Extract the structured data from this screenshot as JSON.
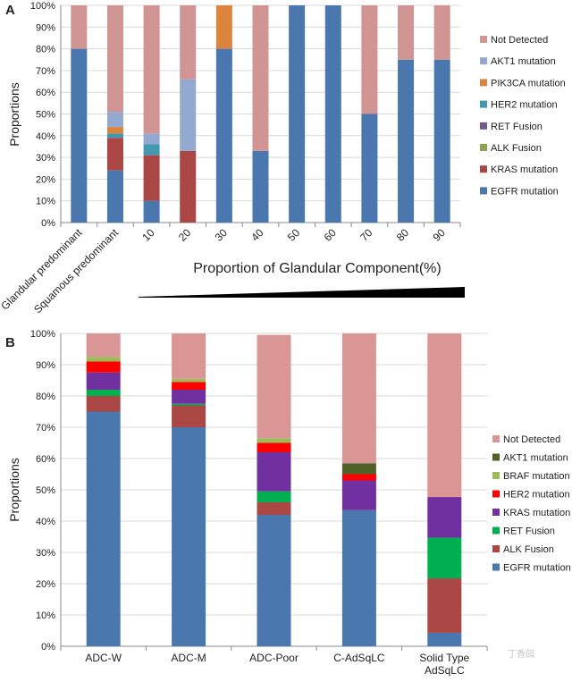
{
  "chart_data": [
    {
      "panel": "A",
      "type": "bar",
      "stacked": true,
      "ylabel": "Proportions",
      "xlabel": "Proportion of Glandular Component(%)",
      "ylim": [
        0,
        100
      ],
      "yticks": [
        "0%",
        "10%",
        "20%",
        "30%",
        "40%",
        "50%",
        "60%",
        "70%",
        "80%",
        "90%",
        "100%"
      ],
      "grid": true,
      "legend_position": "right",
      "categories": [
        "Glandular predominant",
        "Squamous predominant",
        "10",
        "20",
        "30",
        "40",
        "50",
        "60",
        "70",
        "80",
        "90"
      ],
      "series": [
        {
          "name": "EGFR mutation",
          "color": "#4a77ae",
          "values": [
            80,
            24,
            10,
            0,
            80,
            33,
            100,
            100,
            50,
            75,
            75
          ]
        },
        {
          "name": "KRAS mutation",
          "color": "#aa4643",
          "values": [
            0,
            15,
            21,
            33,
            0,
            0,
            0,
            0,
            0,
            0,
            0
          ]
        },
        {
          "name": "ALK Fusion",
          "color": "#89a54e",
          "values": [
            0,
            0,
            0,
            0,
            0,
            0,
            0,
            0,
            0,
            0,
            0
          ]
        },
        {
          "name": "RET Fusion",
          "color": "#71588f",
          "values": [
            0,
            0,
            0,
            0,
            0,
            0,
            0,
            0,
            0,
            0,
            0
          ]
        },
        {
          "name": "HER2 mutation",
          "color": "#4198af",
          "values": [
            0,
            2,
            5,
            0,
            0,
            0,
            0,
            0,
            0,
            0,
            0
          ]
        },
        {
          "name": "PIK3CA mutation",
          "color": "#db843d",
          "values": [
            0,
            3,
            0,
            0,
            20,
            0,
            0,
            0,
            0,
            0,
            0
          ]
        },
        {
          "name": "AKT1 mutation",
          "color": "#93a9cf",
          "values": [
            0,
            7,
            5,
            33,
            0,
            0,
            0,
            0,
            0,
            0,
            0
          ]
        },
        {
          "name": "Not Detected",
          "color": "#d09493",
          "values": [
            20,
            49,
            59,
            34,
            0,
            67,
            0,
            0,
            50,
            25,
            25
          ]
        }
      ],
      "legend_order": [
        "Not Detected",
        "AKT1 mutation",
        "PIK3CA mutation",
        "HER2 mutation",
        "RET Fusion",
        "ALK Fusion",
        "KRAS mutation",
        "EGFR mutation"
      ]
    },
    {
      "panel": "B",
      "type": "bar",
      "stacked": true,
      "ylabel": "Proportions",
      "ylim": [
        0,
        100
      ],
      "yticks": [
        "0%",
        "10%",
        "20%",
        "30%",
        "40%",
        "50%",
        "60%",
        "70%",
        "80%",
        "90%",
        "100%"
      ],
      "grid": true,
      "legend_position": "right",
      "categories": [
        "ADC-W",
        "ADC-M",
        "ADC-Poor",
        "C-AdSqLC",
        "Solid Type AdSqLC"
      ],
      "series": [
        {
          "name": "EGFR mutation",
          "color": "#4a77ae",
          "values": [
            75,
            70,
            42,
            43.5,
            4.3
          ]
        },
        {
          "name": "ALK Fusion",
          "color": "#aa4643",
          "values": [
            5,
            7,
            4,
            0,
            17.4
          ]
        },
        {
          "name": "RET Fusion",
          "color": "#00b050",
          "values": [
            2,
            0.5,
            3.5,
            0,
            13
          ]
        },
        {
          "name": "KRAS mutation",
          "color": "#7030a0",
          "values": [
            5.5,
            4.5,
            12.5,
            9.5,
            13
          ]
        },
        {
          "name": "HER2 mutation",
          "color": "#ff0000",
          "values": [
            3.5,
            2.5,
            3,
            2,
            0
          ]
        },
        {
          "name": "BRAF mutation",
          "color": "#9bbb59",
          "values": [
            1.5,
            1,
            1.5,
            0,
            0
          ]
        },
        {
          "name": "AKT1 mutation",
          "color": "#4f6228",
          "values": [
            0,
            0,
            0,
            3.5,
            0
          ]
        },
        {
          "name": "Not Detected",
          "color": "#d99694",
          "values": [
            7.5,
            14.5,
            33,
            41.5,
            52.3
          ]
        }
      ],
      "legend_order": [
        "Not Detected",
        "AKT1 mutation",
        "BRAF mutation",
        "HER2 mutation",
        "KRAS mutation",
        "RET Fusion",
        "ALK Fusion",
        "EGFR mutation"
      ]
    }
  ],
  "panelA": {
    "letter": "A",
    "ylabel": "Proportions",
    "xlabel": "Proportion of Glandular Component(%)"
  },
  "panelB": {
    "letter": "B",
    "ylabel": "Proportions"
  },
  "watermark": "丁香园"
}
